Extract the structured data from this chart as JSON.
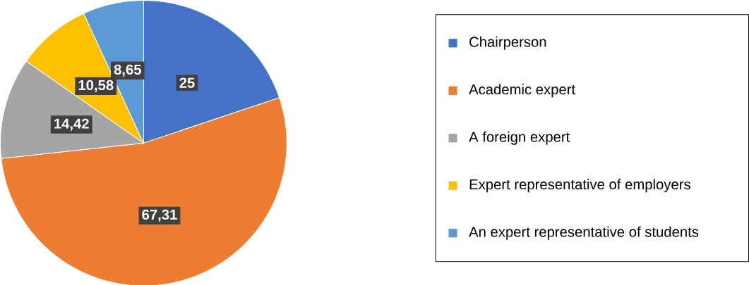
{
  "chart_data": {
    "type": "pie",
    "categories": [
      "Chairperson",
      "Academic expert",
      "A foreign expert",
      "Expert representative of employers",
      "An expert representative of students"
    ],
    "values": [
      25,
      67.31,
      14.42,
      10.58,
      8.65
    ],
    "colors": [
      "#4472c4",
      "#ed7d31",
      "#a5a5a5",
      "#ffc000",
      "#5b9bd5"
    ],
    "value_labels": [
      "25",
      "67,31",
      "14,42",
      "10,58",
      "8,65"
    ],
    "legend": "right"
  }
}
